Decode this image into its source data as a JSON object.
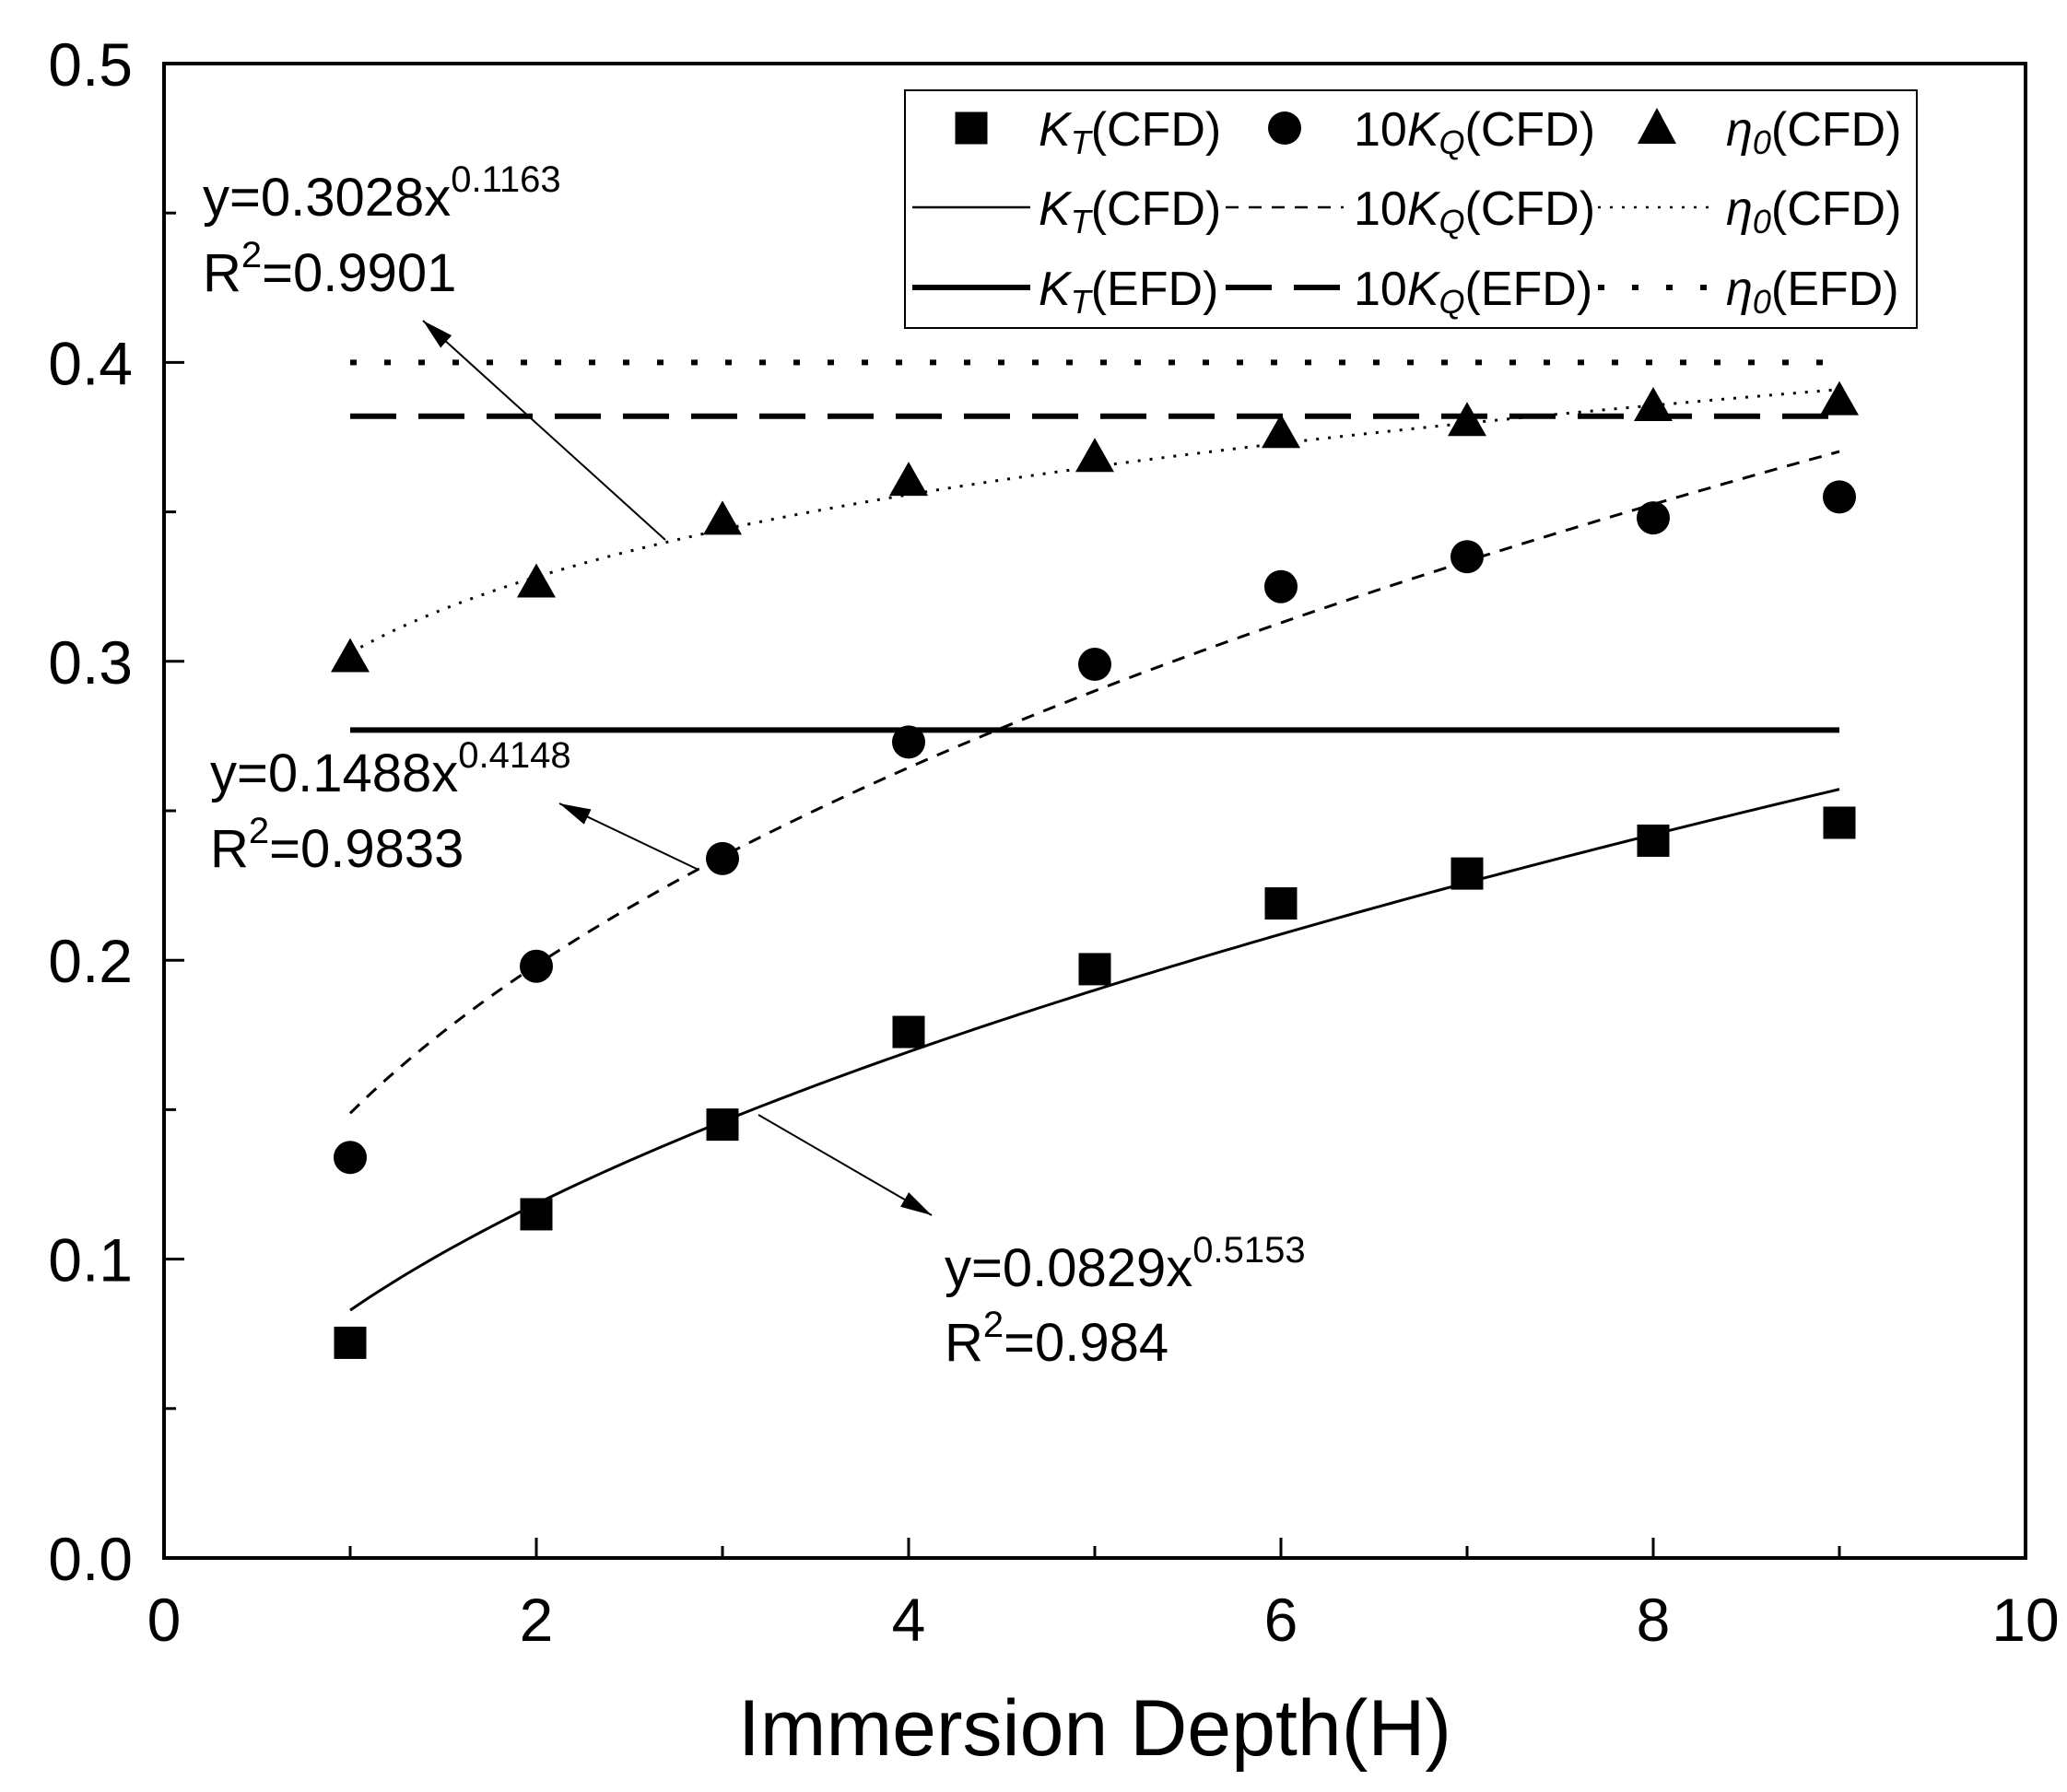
{
  "chart_data": {
    "type": "scatter",
    "xlabel": "Immersion Depth(H)",
    "xlim": [
      0,
      10
    ],
    "ylim": [
      0,
      0.5
    ],
    "grid": false,
    "xticks": [
      {
        "value": 0,
        "label": "0"
      },
      {
        "value": 2,
        "label": "2"
      },
      {
        "value": 4,
        "label": "4"
      },
      {
        "value": 6,
        "label": "6"
      },
      {
        "value": 8,
        "label": "8"
      },
      {
        "value": 10,
        "label": "10"
      }
    ],
    "yticks": [
      {
        "value": 0,
        "label": "0.0"
      },
      {
        "value": 0.1,
        "label": "0.1"
      },
      {
        "value": 0.2,
        "label": "0.2"
      },
      {
        "value": 0.3,
        "label": "0.3"
      },
      {
        "value": 0.4,
        "label": "0.4"
      },
      {
        "value": 0.5,
        "label": "0.5"
      }
    ],
    "x": [
      1,
      2,
      3,
      4,
      5,
      6,
      7,
      8,
      9
    ],
    "series": [
      {
        "label": {
          "base": "K",
          "sub": "T",
          "suffix": "(CFD)"
        },
        "values": [
          0.072,
          0.115,
          0.145,
          0.176,
          0.197,
          0.219,
          0.229,
          0.24,
          0.246
        ]
      },
      {
        "label": {
          "prefix": "10",
          "base": "K",
          "sub": "Q",
          "suffix": "(CFD)"
        },
        "values": [
          0.134,
          0.198,
          0.234,
          0.273,
          0.299,
          0.325,
          0.335,
          0.348,
          0.355
        ]
      },
      {
        "label": {
          "base": "η",
          "sub": "0",
          "suffix": "(CFD)"
        },
        "values": [
          0.301,
          0.326,
          0.347,
          0.36,
          0.368,
          0.376,
          0.38,
          0.385,
          0.387
        ]
      }
    ],
    "fits": [
      {
        "label": {
          "base": "K",
          "sub": "T",
          "suffix": "(CFD)"
        },
        "a": 0.0829,
        "b": 0.5153,
        "x_range": [
          1,
          9
        ],
        "annotation": {
          "equation": "y=0.0829x",
          "exponent": "0.5153",
          "r2_base": "R",
          "r2_power": "2",
          "r2_value": "=0.984"
        }
      },
      {
        "label": {
          "prefix": "10",
          "base": "K",
          "sub": "Q",
          "suffix": "(CFD)"
        },
        "a": 0.1488,
        "b": 0.4148,
        "x_range": [
          1,
          9
        ],
        "annotation": {
          "equation": "y=0.1488x",
          "exponent": "0.4148",
          "r2_base": "R",
          "r2_power": "2",
          "r2_value": "=0.9833"
        }
      },
      {
        "label": {
          "base": "η",
          "sub": "0",
          "suffix": "(CFD)"
        },
        "a": 0.3028,
        "b": 0.1163,
        "x_range": [
          1,
          9
        ],
        "annotation": {
          "equation": "y=0.3028x",
          "exponent": "0.1163",
          "r2_base": "R",
          "r2_power": "2",
          "r2_value": "=0.9901"
        }
      }
    ],
    "reference_lines": [
      {
        "label": {
          "base": "K",
          "sub": "T",
          "suffix": "(EFD)"
        },
        "value": 0.277,
        "x_range": [
          1,
          9
        ]
      },
      {
        "label": {
          "prefix": "10",
          "base": "K",
          "sub": "Q",
          "suffix": "(EFD)"
        },
        "value": 0.382,
        "x_range": [
          1,
          9
        ]
      },
      {
        "label": {
          "base": "η",
          "sub": "0",
          "suffix": "(EFD)"
        },
        "value": 0.4,
        "x_range": [
          1,
          9
        ]
      }
    ]
  }
}
